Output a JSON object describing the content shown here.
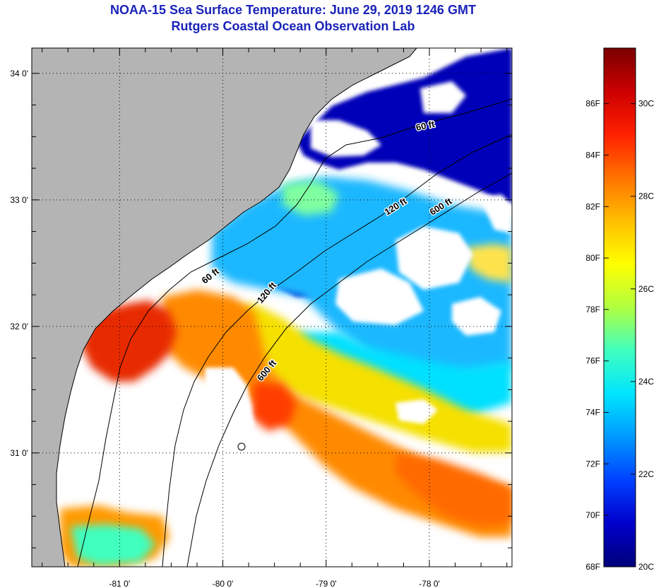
{
  "header": {
    "title": "NOAA-15 Sea Surface Temperature:  June 29, 2019 1246 GMT",
    "subtitle": "Rutgers Coastal Ocean Observation Lab"
  },
  "map": {
    "lon_ticks": [
      "-81 0'",
      "-80 0'",
      "-79 0'",
      "-78 0'"
    ],
    "lat_ticks": [
      "34 0'",
      "33 0'",
      "32 0'",
      "31 0'"
    ],
    "lon_range": [
      -81.85,
      -77.2
    ],
    "lat_range": [
      30.1,
      34.2
    ],
    "contour_labels": [
      "60 ft",
      "120 ft",
      "600 ft",
      "120 ft",
      "600 ft",
      "60 ft"
    ],
    "colors": {
      "land": "#b4b4b4",
      "cloud": "#ffffff",
      "contour": "#000000"
    }
  },
  "colorbar": {
    "fahrenheit_labels": [
      "86F",
      "84F",
      "82F",
      "80F",
      "78F",
      "76F",
      "74F",
      "72F",
      "70F",
      "68F"
    ],
    "celsius_labels": [
      "30C",
      "28C",
      "26C",
      "24C",
      "22C",
      "20C"
    ],
    "range_c": [
      20,
      31.2
    ],
    "stops": [
      "#00007a",
      "#0000cc",
      "#0040ff",
      "#0099ff",
      "#00e5ff",
      "#40ffbf",
      "#b0ff40",
      "#ffff00",
      "#ffbf00",
      "#ff7300",
      "#ff2000",
      "#cc0000",
      "#7a0000"
    ]
  }
}
